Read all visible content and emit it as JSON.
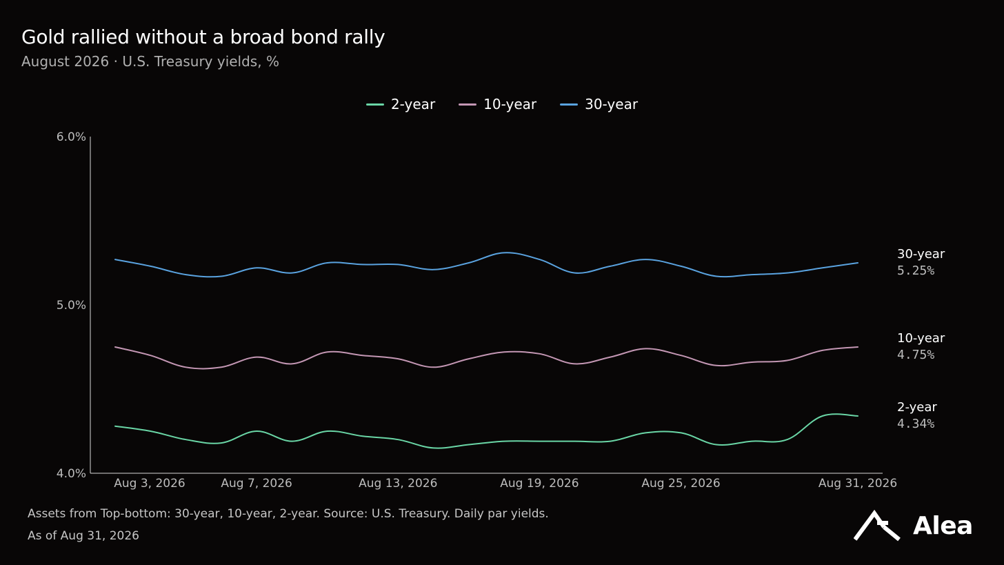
{
  "header": {
    "title": "Gold rallied without a broad bond rally",
    "subtitle": "August 2026 · U.S. Treasury yields, %"
  },
  "footer": {
    "note": "Assets from Top-bottom: 30-year, 10-year, 2-year. Source: U.S. Treasury. Daily par yields.",
    "as_of": "As of Aug 31, 2026"
  },
  "brand": {
    "name": "Alea",
    "logo_icon": "alea-logo-icon"
  },
  "colors": {
    "background": "#080606",
    "axis": "#d8d8d8",
    "tick_text": "#bdbdbd"
  },
  "chart_data": {
    "type": "line",
    "title": "Gold rallied without a broad bond rally",
    "subtitle": "August 2026 · U.S. Treasury yields, %",
    "xlabel": "",
    "ylabel": "",
    "ylim": [
      4.0,
      6.0
    ],
    "yticks": [
      4.0,
      5.0,
      6.0
    ],
    "ytick_labels": [
      "4.0%",
      "5.0%",
      "6.0%"
    ],
    "xlim": [
      0,
      21
    ],
    "x_tick_index": [
      0,
      4,
      8,
      12,
      16,
      21
    ],
    "x_tick_labels": [
      "Aug 3, 2026",
      "Aug 7, 2026",
      "Aug 13, 2026",
      "Aug 19, 2026",
      "Aug 25, 2026",
      "Aug 31, 2026"
    ],
    "grid": false,
    "legend_position": "top-center",
    "series": [
      {
        "name": "2-year",
        "color": "#6ad6a6",
        "end_label": "2-year",
        "end_value_label": "4.34%",
        "values": [
          4.28,
          4.25,
          4.2,
          4.18,
          4.25,
          4.19,
          4.25,
          4.22,
          4.2,
          4.15,
          4.17,
          4.19,
          4.19,
          4.19,
          4.19,
          4.24,
          4.24,
          4.17,
          4.19,
          4.2,
          4.34,
          4.34
        ]
      },
      {
        "name": "10-year",
        "color": "#c497b4",
        "end_label": "10-year",
        "end_value_label": "4.75%",
        "values": [
          4.75,
          4.7,
          4.63,
          4.63,
          4.69,
          4.65,
          4.72,
          4.7,
          4.68,
          4.63,
          4.68,
          4.72,
          4.71,
          4.65,
          4.69,
          4.74,
          4.7,
          4.64,
          4.66,
          4.67,
          4.73,
          4.75
        ]
      },
      {
        "name": "30-year",
        "color": "#5aa3e0",
        "end_label": "30-year",
        "end_value_label": "5.25%",
        "values": [
          5.27,
          5.23,
          5.18,
          5.17,
          5.22,
          5.19,
          5.25,
          5.24,
          5.24,
          5.21,
          5.25,
          5.31,
          5.27,
          5.19,
          5.23,
          5.27,
          5.23,
          5.17,
          5.18,
          5.19,
          5.22,
          5.25
        ]
      }
    ]
  }
}
